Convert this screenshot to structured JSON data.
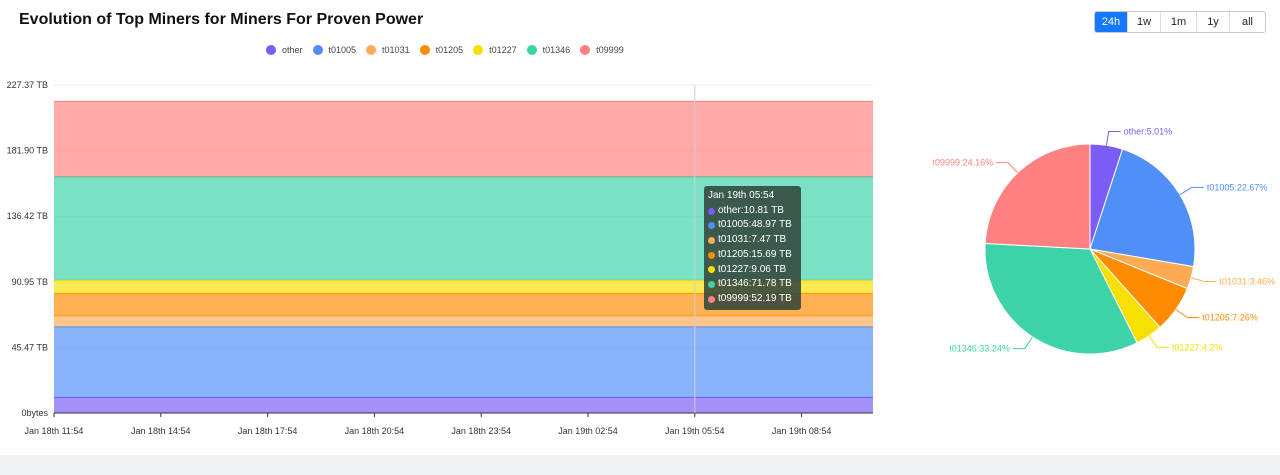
{
  "title": "Evolution of Top Miners for Miners For Proven Power",
  "range_tabs": [
    "24h",
    "1w",
    "1m",
    "1y",
    "all"
  ],
  "active_range": "24h",
  "legend": [
    {
      "name": "other",
      "color": "#7b5cf5"
    },
    {
      "name": "t01005",
      "color": "#4f8ff7"
    },
    {
      "name": "t01031",
      "color": "#ffab54"
    },
    {
      "name": "t01205",
      "color": "#ff8c00"
    },
    {
      "name": "t01227",
      "color": "#f6e000"
    },
    {
      "name": "t01346",
      "color": "#3dd3a8"
    },
    {
      "name": "t09999",
      "color": "#ff8080"
    }
  ],
  "tooltip": {
    "title": "Jan 19th 05:54",
    "rows": [
      {
        "text": "other:10.81 TB",
        "color": "#7b5cf5"
      },
      {
        "text": "t01005:48.97 TB",
        "color": "#4f8ff7"
      },
      {
        "text": "t01031:7.47 TB",
        "color": "#ffab54"
      },
      {
        "text": "t01205:15.69 TB",
        "color": "#ff8c00"
      },
      {
        "text": "t01227:9.06 TB",
        "color": "#f6e000"
      },
      {
        "text": "t01346:71.78 TB",
        "color": "#3dd3a8"
      },
      {
        "text": "t09999:52.19 TB",
        "color": "#ff8080"
      }
    ]
  },
  "chart_data": [
    {
      "type": "area",
      "stacked": true,
      "x": [
        "Jan 18th 11:54",
        "Jan 18th 14:54",
        "Jan 18th 17:54",
        "Jan 18th 20:54",
        "Jan 18th 23:54",
        "Jan 19th 02:54",
        "Jan 19th 05:54",
        "Jan 19th 08:54"
      ],
      "y_ticks": [
        "0bytes",
        "45.47 TB",
        "90.95 TB",
        "136.42 TB",
        "181.90 TB",
        "227.37 TB"
      ],
      "ylim": [
        0,
        227.37
      ],
      "y_unit": "TB",
      "series": [
        {
          "name": "other",
          "values": [
            10.81,
            10.81,
            10.81,
            10.81,
            10.81,
            10.81,
            10.81,
            10.81
          ]
        },
        {
          "name": "t01005",
          "values": [
            48.97,
            48.97,
            48.97,
            48.97,
            48.97,
            48.97,
            48.97,
            48.97
          ]
        },
        {
          "name": "t01031",
          "values": [
            7.47,
            7.47,
            7.47,
            7.47,
            7.47,
            7.47,
            7.47,
            7.47
          ]
        },
        {
          "name": "t01205",
          "values": [
            15.69,
            15.69,
            15.69,
            15.69,
            15.69,
            15.69,
            15.69,
            15.69
          ]
        },
        {
          "name": "t01227",
          "values": [
            9.06,
            9.06,
            9.06,
            9.06,
            9.06,
            9.06,
            9.06,
            9.06
          ]
        },
        {
          "name": "t01346",
          "values": [
            71.78,
            71.78,
            71.78,
            71.78,
            71.78,
            71.78,
            71.78,
            71.78
          ]
        },
        {
          "name": "t09999",
          "values": [
            52.19,
            52.19,
            52.19,
            52.19,
            52.19,
            52.19,
            52.19,
            52.19
          ]
        }
      ],
      "hover_x": "Jan 19th 05:54",
      "legend_position": "top"
    },
    {
      "type": "pie",
      "slices": [
        {
          "name": "other",
          "percent": 5.01,
          "label": "other:5.01%"
        },
        {
          "name": "t01005",
          "percent": 22.67,
          "label": "t01005:22.67%"
        },
        {
          "name": "t01031",
          "percent": 3.46,
          "label": "t01031:3.46%"
        },
        {
          "name": "t01205",
          "percent": 7.26,
          "label": "t01205:7.26%"
        },
        {
          "name": "t01227",
          "percent": 4.2,
          "label": "t01227:4.2%"
        },
        {
          "name": "t01346",
          "percent": 33.24,
          "label": "t01346:33.24%"
        },
        {
          "name": "t09999",
          "percent": 24.16,
          "label": "t09999:24.16%"
        }
      ]
    }
  ]
}
